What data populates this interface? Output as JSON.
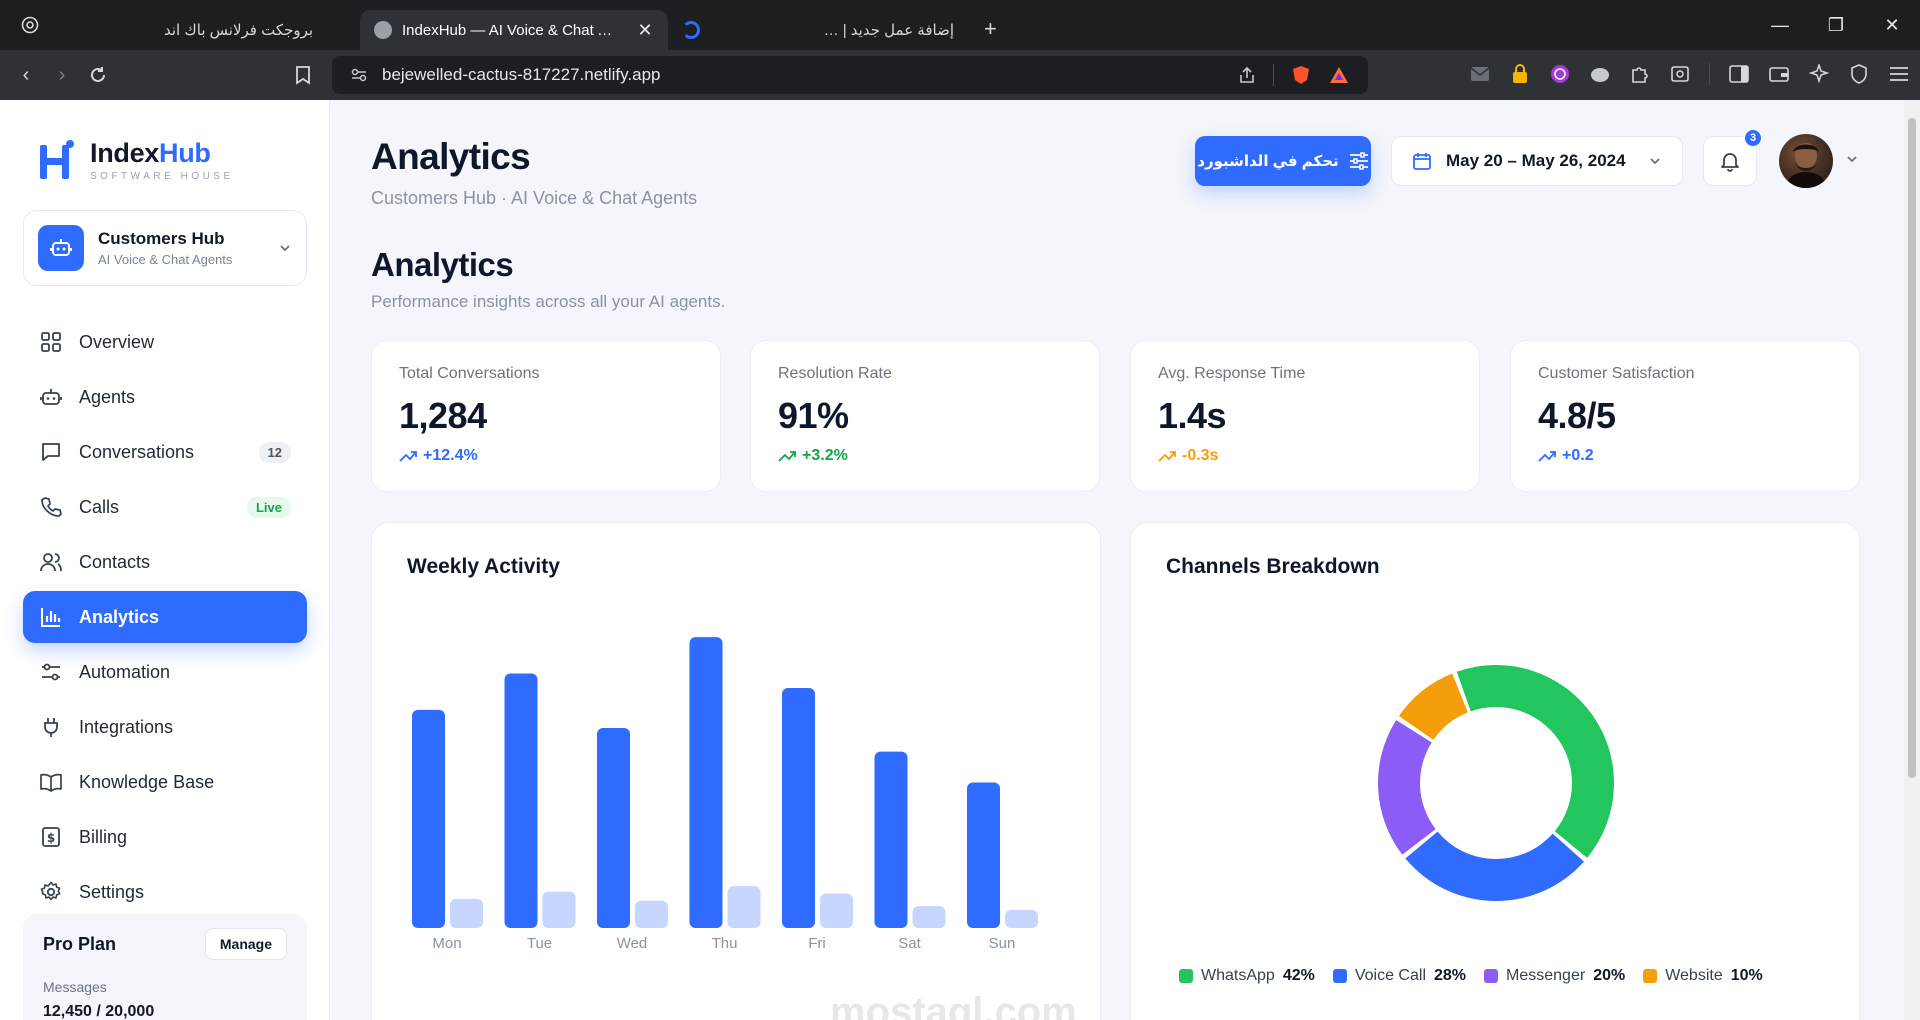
{
  "browser": {
    "tabs": [
      {
        "title": "بروجكت فرلانس باك اند",
        "active": false
      },
      {
        "title": "IndexHub — AI Voice & Chat Agents",
        "active": true
      },
      {
        "title": "إضافة عمل جديد | نفذلي",
        "active": false
      }
    ],
    "url": "bejewelled-cactus-817227.netlify.app"
  },
  "brand": {
    "name_a": "Index",
    "name_b": "Hub",
    "subtitle": "SOFTWARE HOUSE"
  },
  "workspace": {
    "name": "Customers Hub",
    "subtitle": "AI Voice & Chat Agents"
  },
  "sidebar": {
    "items": [
      {
        "label": "Overview",
        "icon": "grid-icon"
      },
      {
        "label": "Agents",
        "icon": "robot-icon"
      },
      {
        "label": "Conversations",
        "icon": "chat-icon",
        "badge": "12"
      },
      {
        "label": "Calls",
        "icon": "phone-icon",
        "badge": "Live"
      },
      {
        "label": "Contacts",
        "icon": "users-icon"
      },
      {
        "label": "Analytics",
        "icon": "bar-chart-icon",
        "active": true
      },
      {
        "label": "Automation",
        "icon": "sliders-icon"
      },
      {
        "label": "Integrations",
        "icon": "plug-icon"
      },
      {
        "label": "Knowledge Base",
        "icon": "book-icon"
      },
      {
        "label": "Billing",
        "icon": "receipt-icon"
      },
      {
        "label": "Settings",
        "icon": "gear-icon"
      }
    ]
  },
  "plan": {
    "title": "Pro Plan",
    "manage": "Manage",
    "label": "Messages",
    "value": "12,450 / 20,000"
  },
  "header": {
    "title": "Analytics",
    "crumb": "Customers Hub · AI Voice & Chat Agents",
    "cta": "تحكم في الداشبورد",
    "date_range": "May 20 – May 26, 2024",
    "notifications": "3"
  },
  "section": {
    "title": "Analytics",
    "subtitle": "Performance insights across all your AI agents."
  },
  "kpis": [
    {
      "label": "Total Conversations",
      "value": "1,284",
      "delta": "+12.4%",
      "color": "#2f6bff"
    },
    {
      "label": "Resolution Rate",
      "value": "91%",
      "delta": "+3.2%",
      "color": "#16a34a"
    },
    {
      "label": "Avg. Response Time",
      "value": "1.4s",
      "delta": "-0.3s",
      "color": "#f59e0b"
    },
    {
      "label": "Customer Satisfaction",
      "value": "4.8/5",
      "delta": "+0.2",
      "color": "#2f6bff"
    }
  ],
  "chart_data": [
    {
      "type": "bar",
      "title": "Weekly Activity",
      "categories": [
        "Mon",
        "Tue",
        "Wed",
        "Thu",
        "Fri",
        "Sat",
        "Sun"
      ],
      "series": [
        {
          "values": [
            240,
            280,
            220,
            320,
            264,
            194,
            160
          ],
          "color": "#2f6bff"
        },
        {
          "values": [
            32,
            40,
            30,
            46,
            38,
            24,
            20
          ],
          "color": "#c6d6ff"
        }
      ],
      "ylim": [
        0,
        330
      ]
    },
    {
      "type": "pie",
      "title": "Channels Breakdown",
      "slices": [
        {
          "label": "WhatsApp",
          "value": 42,
          "display": "42%",
          "color": "#22c55e"
        },
        {
          "label": "Voice Call",
          "value": 28,
          "display": "28%",
          "color": "#2f6bff"
        },
        {
          "label": "Messenger",
          "value": 20,
          "display": "20%",
          "color": "#8b5cf6"
        },
        {
          "label": "Website",
          "value": 10,
          "display": "10%",
          "color": "#f59e0b"
        }
      ]
    }
  ],
  "watermark": "mostaql.com"
}
